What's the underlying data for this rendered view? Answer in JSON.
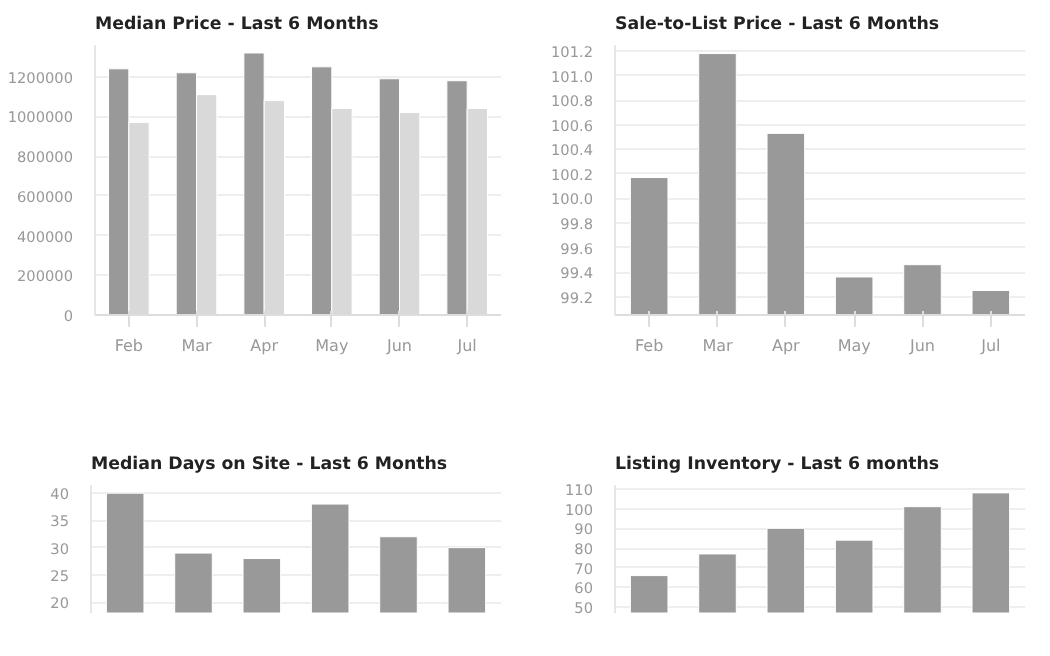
{
  "chart_data": [
    {
      "type": "bar",
      "title": "Median Price - Last 6 Months",
      "categories": [
        "Feb",
        "Mar",
        "Apr",
        "May",
        "Jun",
        "Jul"
      ],
      "series": [
        {
          "color": "#999999",
          "values": [
            1240000,
            1220000,
            1320000,
            1250000,
            1190000,
            1180000
          ]
        },
        {
          "color": "#d9d9d9",
          "values": [
            970000,
            1110000,
            1080000,
            1040000,
            1020000,
            1040000
          ]
        }
      ],
      "ylim": [
        0,
        1360000
      ],
      "yticks": [
        0,
        200000,
        400000,
        600000,
        800000,
        1000000,
        1200000
      ],
      "grid": "y"
    },
    {
      "type": "bar",
      "title": "Sale-to-List Price - Last 6 Months",
      "categories": [
        "Feb",
        "Mar",
        "Apr",
        "May",
        "Jun",
        "Jul"
      ],
      "series": [
        {
          "color": "#999999",
          "values": [
            100.17,
            101.18,
            100.53,
            99.36,
            99.46,
            99.25
          ]
        }
      ],
      "ylim": [
        99.05,
        101.25
      ],
      "yticks": [
        {
          "value": 99.2,
          "label": "99.2"
        },
        {
          "value": 99.4,
          "label": "99.4"
        },
        {
          "value": 99.6,
          "label": "99.6"
        },
        {
          "value": 99.8,
          "label": "99.8"
        },
        {
          "value": 100.0,
          "label": "100.0"
        },
        {
          "value": 100.2,
          "label": "100.2"
        },
        {
          "value": 100.4,
          "label": "100.4"
        },
        {
          "value": 100.6,
          "label": "100.6"
        },
        {
          "value": 100.8,
          "label": "100.8"
        },
        {
          "value": 101.0,
          "label": "101.0"
        },
        {
          "value": 101.2,
          "label": "101.2"
        }
      ],
      "grid": "y"
    },
    {
      "type": "bar",
      "title": "Median Days on Site - Last 6 Months",
      "categories": [
        null,
        null,
        null,
        null,
        null,
        null
      ],
      "series": [
        {
          "color": "#999999",
          "values": [
            40,
            29,
            28,
            38,
            32,
            30
          ]
        }
      ],
      "ylim": [
        18,
        41.5
      ],
      "yticks": [
        20,
        25,
        30,
        35,
        40
      ],
      "grid": "y",
      "tick_labels": "y"
    },
    {
      "type": "bar",
      "title": "Listing Inventory - Last 6 months",
      "categories": [
        null,
        null,
        null,
        null,
        null,
        null
      ],
      "series": [
        {
          "color": "#999999",
          "values": [
            66,
            77,
            90,
            84,
            101,
            108
          ]
        }
      ],
      "ylim": [
        47,
        112
      ],
      "yticks": [
        50,
        60,
        70,
        80,
        90,
        100,
        110
      ],
      "grid": "y",
      "tick_labels": "y"
    }
  ]
}
